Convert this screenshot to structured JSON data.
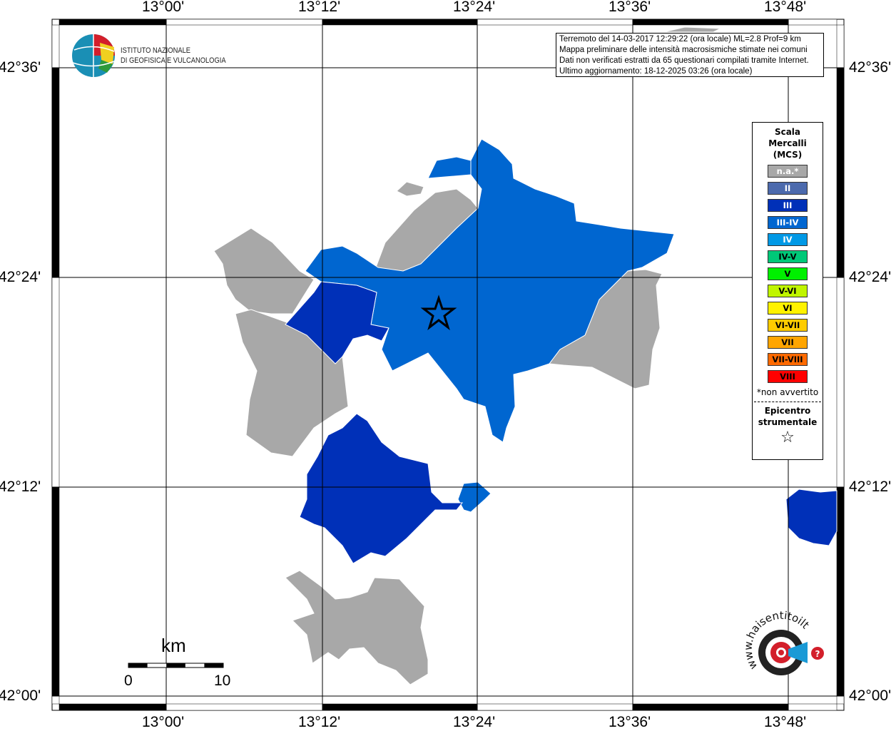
{
  "map": {
    "lon_ticks": [
      "13°00'",
      "13°12'",
      "13°24'",
      "13°36'",
      "13°48'"
    ],
    "lat_ticks": [
      "42°36'",
      "42°24'",
      "42°12'",
      "42°00'"
    ],
    "scale_bar": {
      "unit": "km",
      "labels": [
        "0",
        "10"
      ]
    },
    "epicenter_icon": "star-outline-icon"
  },
  "info": {
    "lines": [
      "Terremoto del 14-03-2017 12:29:22 (ora locale) ML=2.8 Prof=9 km",
      "Mappa preliminare delle intensità macrosismiche stimate nei comuni",
      "Dati non verificati estratti da 65 questionari compilati tramite Internet.",
      "Ultimo aggiornamento: 18-12-2025 03:26 (ora locale)"
    ]
  },
  "logo": {
    "ingv_line1": "ISTITUTO NAZIONALE",
    "ingv_line2": "DI GEOFISICA E VULCANOLOGIA",
    "hsit": "www.haisentitoilterremoto.it"
  },
  "legend": {
    "title": [
      "Scala",
      "Mercalli",
      "(MCS)"
    ],
    "items": [
      {
        "label": "n.a.*",
        "color": "#a8a8a8",
        "text": "#ffffff"
      },
      {
        "label": "II",
        "color": "#4c6aad",
        "text": "#ffffff"
      },
      {
        "label": "III",
        "color": "#0030b8",
        "text": "#ffffff"
      },
      {
        "label": "III-IV",
        "color": "#0066d0",
        "text": "#ffffff"
      },
      {
        "label": "IV",
        "color": "#0099e6",
        "text": "#ffffff"
      },
      {
        "label": "IV-V",
        "color": "#00c878",
        "text": "#000000"
      },
      {
        "label": "V",
        "color": "#00f000",
        "text": "#000000"
      },
      {
        "label": "V-VI",
        "color": "#c0f500",
        "text": "#000000"
      },
      {
        "label": "VI",
        "color": "#fff200",
        "text": "#000000"
      },
      {
        "label": "VI-VII",
        "color": "#ffcc00",
        "text": "#000000"
      },
      {
        "label": "VII",
        "color": "#ffa500",
        "text": "#000000"
      },
      {
        "label": "VII-VIII",
        "color": "#ff6a00",
        "text": "#000000"
      },
      {
        "label": "VIII",
        "color": "#ff0000",
        "text": "#000000"
      }
    ],
    "note": "*non avvertito",
    "epicenter_title": [
      "Epicentro",
      "strumentale"
    ]
  }
}
